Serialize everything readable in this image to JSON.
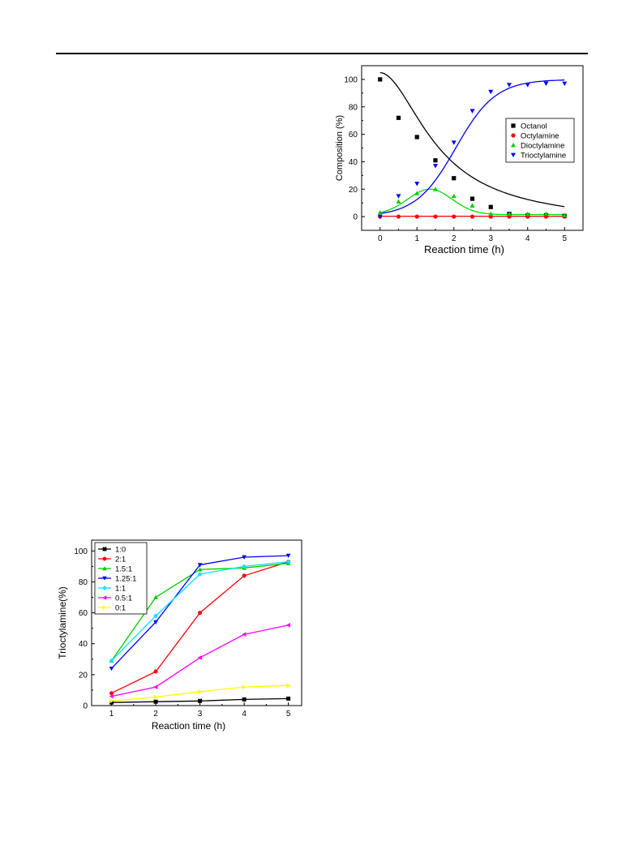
{
  "chart_data": [
    {
      "type": "scatter",
      "xlabel": "Reaction time (h)",
      "ylabel": "Composition (%)",
      "xlim": [
        -0.5,
        5.5
      ],
      "ylim": [
        -10,
        110
      ],
      "xticks": [
        "0",
        "1",
        "2",
        "3",
        "4",
        "5"
      ],
      "yticks": [
        "0",
        "20",
        "40",
        "60",
        "80",
        "100"
      ],
      "legend_position": "right-middle",
      "fit_curves": true,
      "series": [
        {
          "name": "Octanol",
          "color": "#000000",
          "marker": "square",
          "x": [
            0,
            0.5,
            1,
            1.5,
            2,
            2.5,
            3,
            3.5,
            4,
            4.5,
            5
          ],
          "y": [
            100,
            72,
            58,
            41,
            28,
            13,
            7,
            2,
            1,
            1,
            0.5
          ]
        },
        {
          "name": "Octylamine",
          "color": "#ff0000",
          "marker": "circle",
          "x": [
            0,
            0.5,
            1,
            1.5,
            2,
            2.5,
            3,
            3.5,
            4,
            4.5,
            5
          ],
          "y": [
            0,
            0,
            0,
            0,
            0,
            0,
            0,
            0,
            0,
            0,
            0
          ]
        },
        {
          "name": "Dioctylamine",
          "color": "#00cc00",
          "marker": "triangle-up",
          "x": [
            0,
            0.5,
            1,
            1.5,
            2,
            2.5,
            3,
            3.5,
            4,
            4.5,
            5
          ],
          "y": [
            3,
            11,
            17,
            20,
            15,
            8,
            2,
            2,
            2,
            2,
            1
          ]
        },
        {
          "name": "Trioctylamine",
          "color": "#0000ff",
          "marker": "triangle-down",
          "x": [
            0,
            0.5,
            1,
            1.5,
            2,
            2.5,
            3,
            3.5,
            4,
            4.5,
            5
          ],
          "y": [
            0,
            15,
            24,
            37,
            54,
            77,
            91,
            96,
            96,
            97,
            97
          ]
        }
      ]
    },
    {
      "type": "line",
      "xlabel": "Reaction time (h)",
      "ylabel": "Trioctylamine(%)",
      "xlim": [
        0.55,
        5.3
      ],
      "ylim": [
        0,
        107
      ],
      "xticks": [
        "1",
        "2",
        "3",
        "4",
        "5"
      ],
      "yticks": [
        "0",
        "20",
        "40",
        "60",
        "80",
        "100"
      ],
      "legend_position": "top-left",
      "x": [
        1,
        2,
        3,
        4,
        5
      ],
      "series": [
        {
          "name": "1:0",
          "color": "#000000",
          "marker": "square",
          "values": [
            2,
            2.5,
            3,
            4,
            4.5
          ]
        },
        {
          "name": "2:1",
          "color": "#ff0000",
          "marker": "circle",
          "values": [
            8,
            22,
            60,
            84,
            93
          ]
        },
        {
          "name": "1.5:1",
          "color": "#00cc00",
          "marker": "triangle-up",
          "values": [
            29,
            70,
            88,
            89,
            92
          ]
        },
        {
          "name": "1.25:1",
          "color": "#0000ff",
          "marker": "triangle-down",
          "values": [
            24,
            54,
            91,
            96,
            97
          ]
        },
        {
          "name": "1:1",
          "color": "#00e5ff",
          "marker": "diamond",
          "values": [
            29,
            58,
            85,
            90,
            93
          ]
        },
        {
          "name": "0.5:1",
          "color": "#ff00ff",
          "marker": "triangle-left",
          "values": [
            6,
            12,
            31,
            46,
            52
          ]
        },
        {
          "name": "0:1",
          "color": "#ffff00",
          "marker": "triangle-right",
          "values": [
            3,
            5.5,
            9,
            12,
            13
          ]
        }
      ]
    }
  ]
}
